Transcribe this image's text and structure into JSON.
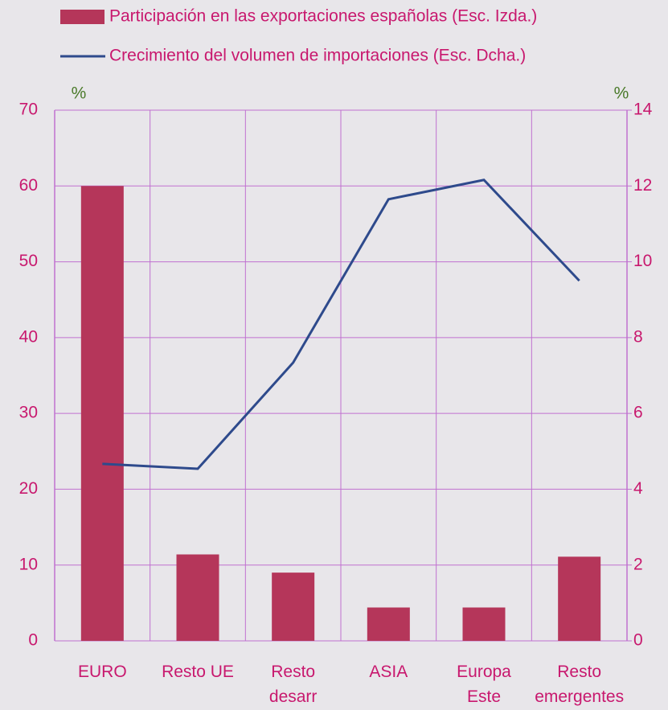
{
  "chart_data": {
    "type": "bar_line",
    "categories": [
      [
        "EURO"
      ],
      [
        "Resto UE"
      ],
      [
        "Resto",
        "desarr"
      ],
      [
        "ASIA"
      ],
      [
        "Europa",
        "Este"
      ],
      [
        "Resto",
        "emergentes"
      ]
    ],
    "series": [
      {
        "name": "Participación en las exportaciones españolas (Esc. Izda.)",
        "type": "bar",
        "color": "#b5365a",
        "values": [
          60,
          11.4,
          9,
          4.4,
          4.4,
          11.1
        ]
      },
      {
        "name": "Crecimiento del volumen de importaciones (Esc. Dcha.)",
        "type": "line",
        "axis": "y2",
        "color": "#2e4a8c",
        "values": [
          4.67,
          4.54,
          7.34,
          11.65,
          12.16,
          9.5
        ]
      }
    ],
    "ylabel": "%",
    "y2label": "%",
    "ylim": [
      0,
      70
    ],
    "yticks": [
      0,
      10,
      20,
      30,
      40,
      50,
      60,
      70
    ],
    "y2lim": [
      0,
      14
    ],
    "y2ticks": [
      0,
      2,
      4,
      6,
      8,
      10,
      12,
      14
    ],
    "grid": true
  }
}
